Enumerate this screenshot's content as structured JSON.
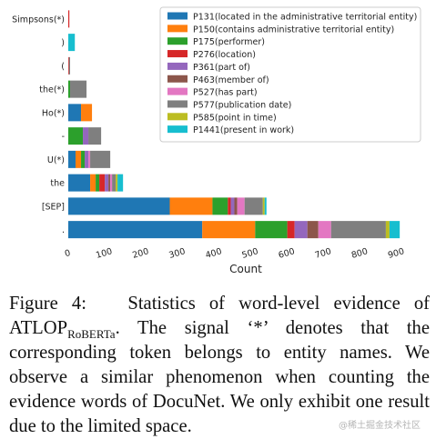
{
  "chart_data": {
    "type": "bar",
    "orientation": "horizontal",
    "stacked": true,
    "xlabel": "Count",
    "ylabel": "",
    "xlim": [
      0,
      950
    ],
    "xticks": [
      0,
      100,
      200,
      300,
      400,
      500,
      600,
      700,
      800,
      900
    ],
    "grid": false,
    "legend_position": "top-right",
    "categories": [
      "Simpsons(*)",
      ")",
      "(",
      "the(*)",
      "Ho(*)",
      "-",
      "U(*)",
      "the",
      "[SEP]",
      "."
    ],
    "series": [
      {
        "name": "P131(located in the administrative territorial entity)",
        "color": "#1f77b4",
        "values": [
          0,
          0,
          0,
          0,
          35,
          0,
          20,
          60,
          278,
          367
        ]
      },
      {
        "name": "P150(contains administrative territorial entity)",
        "color": "#ff7f0e",
        "values": [
          0,
          0,
          0,
          0,
          30,
          0,
          15,
          15,
          117,
          145
        ]
      },
      {
        "name": "P175(performer)",
        "color": "#2ca02c",
        "values": [
          0,
          0,
          0,
          5,
          0,
          40,
          10,
          10,
          42,
          88
        ]
      },
      {
        "name": "P276(location)",
        "color": "#d62728",
        "values": [
          3,
          0,
          2,
          0,
          0,
          0,
          0,
          15,
          8,
          20
        ]
      },
      {
        "name": "P361(part of)",
        "color": "#9467bd",
        "values": [
          0,
          0,
          0,
          0,
          0,
          15,
          10,
          10,
          10,
          35
        ]
      },
      {
        "name": "P463(member of)",
        "color": "#8c564b",
        "values": [
          0,
          0,
          0,
          0,
          0,
          0,
          0,
          5,
          8,
          30
        ]
      },
      {
        "name": "P527(has part)",
        "color": "#e377c2",
        "values": [
          0,
          0,
          0,
          0,
          0,
          0,
          5,
          5,
          20,
          35
        ]
      },
      {
        "name": "P577(publication date)",
        "color": "#7f7f7f",
        "values": [
          0,
          0,
          3,
          45,
          0,
          35,
          55,
          10,
          50,
          150
        ]
      },
      {
        "name": "P585(point in time)",
        "color": "#bcbd22",
        "values": [
          0,
          0,
          0,
          0,
          0,
          0,
          0,
          5,
          5,
          10
        ]
      },
      {
        "name": "P1441(present in work)",
        "color": "#17becf",
        "values": [
          0,
          18,
          0,
          0,
          0,
          0,
          0,
          15,
          5,
          28
        ]
      }
    ]
  },
  "caption": {
    "label": "Figure 4:",
    "text_before": "Statistics of word-level evidence of ATLOP",
    "subscript": "RoBERTa",
    "text_after": ". The signal ‘*’ denotes that the corresponding token belongs to entity names. We observe a similar phenomenon when counting the evidence words of DocuNet. We only exhibit one result due to the limited space."
  },
  "watermark": "@稀土掘金技术社区"
}
